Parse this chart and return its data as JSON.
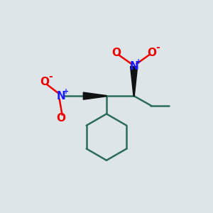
{
  "background_color": "#dde5e8",
  "bond_color": "#2d6b5a",
  "bond_width": 1.8,
  "wedge_color": "#111111",
  "N_color": "#1a1aff",
  "O_color": "#ee0000",
  "figsize": [
    3.0,
    3.0
  ],
  "dpi": 100,
  "xlim": [
    0,
    10
  ],
  "ylim": [
    0,
    10
  ]
}
